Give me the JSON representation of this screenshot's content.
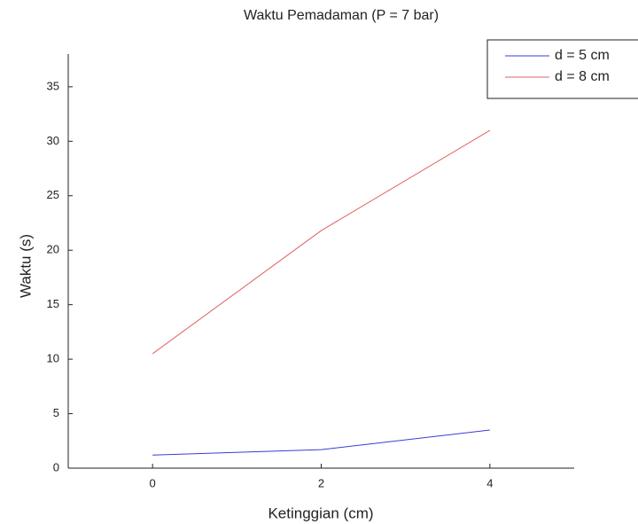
{
  "chart_data": {
    "type": "line",
    "title": "Waktu Pemadaman (P = 7 bar)",
    "x_label": "Ketinggian (cm)",
    "y_label": "Waktu (s)",
    "x": [
      0,
      2,
      4
    ],
    "series": [
      {
        "name": "d = 5 cm",
        "color": "#3b3bd6",
        "values": [
          1.2,
          1.7,
          3.5
        ]
      },
      {
        "name": "d = 8 cm",
        "color": "#e06060",
        "values": [
          10.5,
          21.8,
          31
        ]
      }
    ],
    "xlim": [
      -1,
      5
    ],
    "xticks": [
      0,
      2,
      4
    ],
    "ylim": [
      0,
      38
    ],
    "yticks": [
      0,
      5,
      10,
      15,
      20,
      25,
      30,
      35
    ],
    "grid": false,
    "legend": "upper right"
  }
}
